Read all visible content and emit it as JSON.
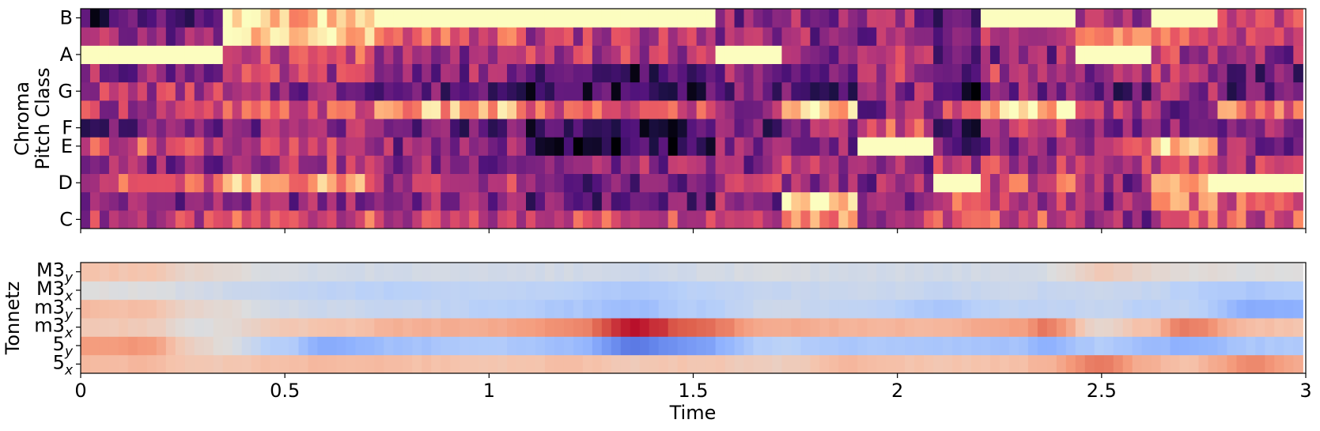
{
  "chart_data": [
    {
      "type": "heatmap",
      "panel": "chroma",
      "ylabel_lines": [
        "Chroma",
        "Pitch Class"
      ],
      "row_labels": [
        "C",
        "C#",
        "D",
        "D#",
        "E",
        "F",
        "F#",
        "G",
        "G#",
        "A",
        "A#",
        "B"
      ],
      "yticks": [
        "C",
        "D",
        "E",
        "F",
        "G",
        "A",
        "B"
      ],
      "colormap": "magma",
      "xlim": [
        0,
        3
      ],
      "time_step": 0.0232,
      "value_range": [
        0,
        1
      ],
      "segments": [
        {
          "t": [
            0.0,
            0.35
          ],
          "values": [
            0.5,
            0.4,
            0.6,
            0.4,
            0.6,
            0.3,
            0.5,
            0.5,
            0.4,
            1.0,
            0.4,
            0.2
          ]
        },
        {
          "t": [
            0.35,
            0.73
          ],
          "values": [
            0.6,
            0.4,
            0.8,
            0.5,
            0.5,
            0.4,
            0.6,
            0.4,
            0.5,
            0.6,
            0.9,
            0.9
          ]
        },
        {
          "t": [
            0.73,
            1.1
          ],
          "values": [
            0.5,
            0.4,
            0.5,
            0.4,
            0.4,
            0.3,
            0.8,
            0.3,
            0.4,
            0.4,
            0.6,
            1.0
          ]
        },
        {
          "t": [
            1.1,
            1.55
          ],
          "values": [
            0.6,
            0.3,
            0.3,
            0.4,
            0.15,
            0.2,
            0.6,
            0.2,
            0.2,
            0.5,
            0.5,
            1.0
          ]
        },
        {
          "t": [
            1.55,
            1.72
          ],
          "values": [
            0.6,
            0.4,
            0.5,
            0.4,
            0.4,
            0.3,
            0.4,
            0.3,
            0.4,
            1.0,
            0.4,
            0.4
          ]
        },
        {
          "t": [
            1.72,
            1.9
          ],
          "values": [
            0.8,
            0.95,
            0.4,
            0.5,
            0.4,
            0.4,
            0.9,
            0.3,
            0.4,
            0.4,
            0.4,
            0.4
          ]
        },
        {
          "t": [
            1.9,
            2.08
          ],
          "values": [
            0.5,
            0.4,
            0.4,
            0.4,
            1.0,
            0.6,
            0.4,
            0.4,
            0.5,
            0.5,
            0.4,
            0.4
          ]
        },
        {
          "t": [
            2.08,
            2.2
          ],
          "values": [
            0.6,
            0.6,
            1.0,
            0.5,
            0.3,
            0.2,
            0.5,
            0.1,
            0.2,
            0.3,
            0.3,
            0.3
          ]
        },
        {
          "t": [
            2.2,
            2.43
          ],
          "values": [
            0.6,
            0.5,
            0.6,
            0.5,
            0.4,
            0.5,
            0.9,
            0.4,
            0.5,
            0.4,
            0.6,
            1.0
          ]
        },
        {
          "t": [
            2.43,
            2.62
          ],
          "values": [
            0.4,
            0.4,
            0.4,
            0.5,
            0.5,
            0.4,
            0.5,
            0.3,
            0.4,
            1.0,
            0.7,
            0.4
          ]
        },
        {
          "t": [
            2.62,
            2.78
          ],
          "values": [
            0.6,
            0.7,
            0.9,
            0.6,
            0.9,
            0.4,
            0.4,
            0.4,
            0.5,
            0.5,
            0.6,
            1.0
          ]
        },
        {
          "t": [
            2.78,
            3.0
          ],
          "values": [
            0.6,
            0.6,
            1.0,
            0.5,
            0.4,
            0.4,
            0.7,
            0.3,
            0.3,
            0.4,
            0.6,
            0.6
          ]
        }
      ]
    },
    {
      "type": "heatmap",
      "panel": "tonnetz",
      "ylabel": "Tonnetz",
      "row_labels": [
        {
          "base": "5",
          "sub": "x"
        },
        {
          "base": "5",
          "sub": "y"
        },
        {
          "base": "m3",
          "sub": "x"
        },
        {
          "base": "m3",
          "sub": "y"
        },
        {
          "base": "M3",
          "sub": "x"
        },
        {
          "base": "M3",
          "sub": "y"
        }
      ],
      "colormap": "coolwarm",
      "xlim": [
        0,
        3
      ],
      "value_range": [
        -0.25,
        0.25
      ],
      "xlabel": "Time",
      "xticks": [
        {
          "value": 0,
          "label": "0"
        },
        {
          "value": 0.5,
          "label": "0.5"
        },
        {
          "value": 1,
          "label": "1"
        },
        {
          "value": 1.5,
          "label": "1.5"
        },
        {
          "value": 2,
          "label": "2"
        },
        {
          "value": 2.5,
          "label": "2.5"
        },
        {
          "value": 3,
          "label": "3"
        }
      ],
      "keyframes": [
        {
          "t": 0.0,
          "values": [
            0.08,
            0.12,
            0.05,
            0.08,
            0.0,
            0.06
          ]
        },
        {
          "t": 0.15,
          "values": [
            0.08,
            0.13,
            0.05,
            0.07,
            0.0,
            0.06
          ]
        },
        {
          "t": 0.3,
          "values": [
            0.05,
            0.02,
            0.0,
            0.02,
            -0.02,
            0.02
          ]
        },
        {
          "t": 0.5,
          "values": [
            0.07,
            -0.07,
            0.05,
            -0.02,
            -0.04,
            -0.01
          ]
        },
        {
          "t": 0.6,
          "values": [
            0.08,
            -0.13,
            0.06,
            -0.03,
            -0.05,
            -0.02
          ]
        },
        {
          "t": 0.8,
          "values": [
            0.07,
            -0.09,
            0.09,
            -0.04,
            -0.06,
            -0.02
          ]
        },
        {
          "t": 1.0,
          "values": [
            0.06,
            -0.07,
            0.1,
            -0.06,
            -0.05,
            -0.02
          ]
        },
        {
          "t": 1.2,
          "values": [
            0.07,
            -0.1,
            0.14,
            -0.08,
            -0.06,
            -0.02
          ]
        },
        {
          "t": 1.36,
          "values": [
            0.05,
            -0.2,
            0.24,
            -0.1,
            -0.08,
            -0.03
          ]
        },
        {
          "t": 1.5,
          "values": [
            0.06,
            -0.15,
            0.18,
            -0.07,
            -0.06,
            -0.02
          ]
        },
        {
          "t": 1.7,
          "values": [
            0.04,
            -0.06,
            0.1,
            -0.03,
            -0.04,
            -0.01
          ]
        },
        {
          "t": 1.9,
          "values": [
            0.08,
            -0.08,
            0.09,
            -0.05,
            -0.03,
            -0.02
          ]
        },
        {
          "t": 2.1,
          "values": [
            0.06,
            -0.08,
            0.08,
            -0.08,
            -0.04,
            -0.02
          ]
        },
        {
          "t": 2.3,
          "values": [
            0.07,
            -0.09,
            0.12,
            -0.05,
            -0.03,
            -0.02
          ]
        },
        {
          "t": 2.36,
          "values": [
            0.09,
            -0.12,
            0.16,
            -0.05,
            -0.04,
            -0.01
          ]
        },
        {
          "t": 2.5,
          "values": [
            0.16,
            -0.07,
            0.02,
            -0.04,
            -0.03,
            0.05
          ]
        },
        {
          "t": 2.62,
          "values": [
            0.09,
            -0.1,
            0.07,
            -0.06,
            -0.04,
            0.02
          ]
        },
        {
          "t": 2.7,
          "values": [
            0.07,
            -0.12,
            0.16,
            -0.05,
            -0.06,
            0.01
          ]
        },
        {
          "t": 2.88,
          "values": [
            0.14,
            -0.08,
            0.07,
            -0.13,
            -0.08,
            0.0
          ]
        },
        {
          "t": 3.0,
          "values": [
            0.1,
            -0.08,
            0.06,
            -0.12,
            -0.07,
            0.0
          ]
        }
      ]
    }
  ]
}
